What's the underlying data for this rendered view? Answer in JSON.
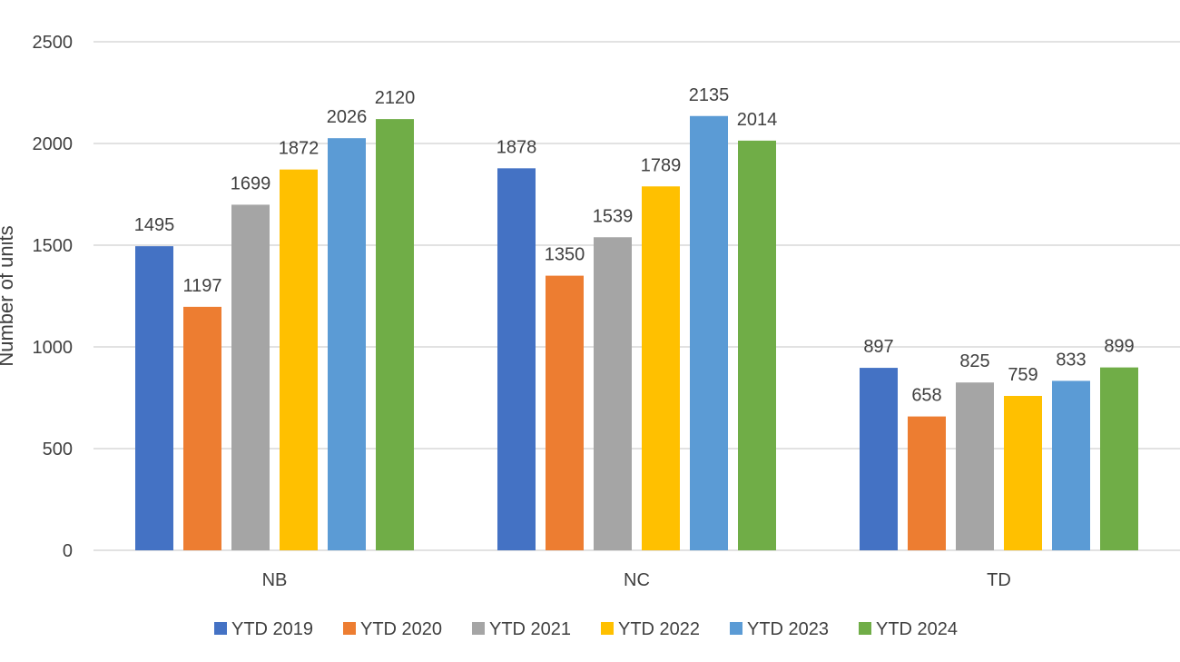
{
  "chart_data": {
    "type": "bar",
    "title": "",
    "xlabel": "",
    "ylabel": "Number of units",
    "ylim": [
      0,
      2500
    ],
    "yticks": [
      0,
      500,
      1000,
      1500,
      2000,
      2500
    ],
    "grid": true,
    "legend_position": "bottom",
    "categories": [
      "NB",
      "NC",
      "TD"
    ],
    "series": [
      {
        "name": "YTD 2019",
        "color": "#4472C4",
        "values": [
          1495,
          1878,
          897
        ]
      },
      {
        "name": "YTD 2020",
        "color": "#ED7D31",
        "values": [
          1197,
          1350,
          658
        ]
      },
      {
        "name": "YTD 2021",
        "color": "#A5A5A5",
        "values": [
          1699,
          1539,
          825
        ]
      },
      {
        "name": "YTD 2022",
        "color": "#FFC000",
        "values": [
          1872,
          1789,
          759
        ]
      },
      {
        "name": "YTD 2023",
        "color": "#5B9BD5",
        "values": [
          2026,
          2135,
          833
        ]
      },
      {
        "name": "YTD 2024",
        "color": "#70AD47",
        "values": [
          2120,
          2014,
          899
        ]
      }
    ]
  }
}
